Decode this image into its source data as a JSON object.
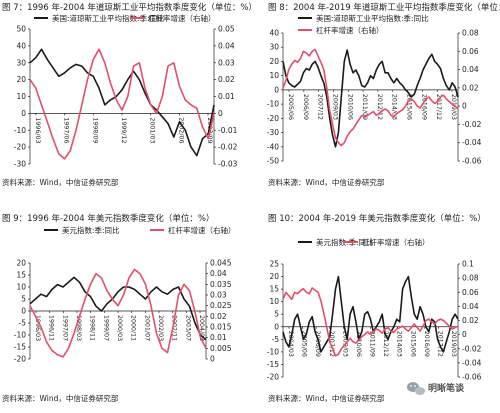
{
  "page": {
    "source": "资料来源：Wind，中信证券研究部"
  },
  "watermark": {
    "text": "明晰笔谈"
  },
  "charts": [
    {
      "title": "图 7：1996 年-2004 年道琼斯工业平均指数季度变化（单位：%）",
      "source": "资料来源：Wind，中信证券研究部",
      "legend": [
        "美国:道琼斯工业平均指数:季:同比",
        "杠杆率增速（右轴）"
      ],
      "y_ticks_left": [
        "50",
        "40",
        "30",
        "20",
        "10",
        "0",
        "-10",
        "-20",
        "-30"
      ],
      "y_ticks_right": [
        "0.05",
        "0.04",
        "0.03",
        "0.02",
        "0.01",
        "0",
        "-0.01",
        "-0.02",
        "-0.03"
      ],
      "x_ticks": [
        "1996/03",
        "1997/06",
        "1998/09",
        "1999/12",
        "2001/03",
        "2002/06",
        "2003/09"
      ]
    },
    {
      "title": "图 8：2004 年-2019 年道琼斯工业平均指数季度变化（单位：%）",
      "source": "资料来源：Wind，中信证券研究部",
      "legend": [
        "美国:道琼斯工业平均指数:季:同比",
        "杠杆率增速（右轴）"
      ],
      "y_ticks_left": [
        "40",
        "30",
        "20",
        "10",
        "0",
        "-10",
        "-20",
        "-30",
        "-40",
        "-50"
      ],
      "y_ticks_right": [
        "0.08",
        "0.06",
        "0.04",
        "0.02",
        "0",
        "-0.02",
        "-0.04",
        "-0.06"
      ],
      "x_ticks": [
        "2005/06",
        "2006/09",
        "2007/12",
        "2009/03",
        "2010/06",
        "2011/09",
        "2012/12",
        "2014/03",
        "2015/06",
        "2016/09",
        "2017/12",
        "2019/03"
      ]
    },
    {
      "title": "图 9：1996 年-2004 年美元指数季度变化（单位：%）",
      "source": "资料来源：Wind，中信证券研究部",
      "legend": [
        "美元指数:季:同比",
        "杠杆率增速（右轴）"
      ],
      "y_ticks_left": [
        "20",
        "15",
        "10",
        "5",
        "0",
        "-5",
        "-10",
        "-15",
        "-20"
      ],
      "y_ticks_right": [
        "0.045",
        "0.04",
        "0.035",
        "0.03",
        "0.025",
        "0.02",
        "0.015",
        "0.01",
        "0.005",
        "0"
      ],
      "x_ticks": [
        "1996/03",
        "1996/11",
        "1997/07",
        "1998/03",
        "1998/11",
        "1999/07",
        "2000/03",
        "2000/11",
        "2001/07",
        "2002/03",
        "2002/11",
        "2003/07",
        "2004/03"
      ]
    },
    {
      "title": "图 10：2004 年-2019 年美元指数季度变化（单位：%）",
      "source": "资料来源：Wind，中信证券研究部",
      "legend": [
        "美元指数:季:同比",
        "杠杆率增速（右轴）"
      ],
      "y_ticks_left": [
        "25",
        "20",
        "15",
        "10",
        "5",
        "0",
        "-5",
        "-10",
        "-15",
        "-20"
      ],
      "y_ticks_right": [
        "0.1",
        "0.08",
        "0.06",
        "0.04",
        "0.02",
        "0",
        "-0.02",
        "-0.04",
        "-0.06"
      ],
      "x_ticks": [
        "2004/03",
        "2005/06",
        "2006/09",
        "2007/12",
        "2009/03",
        "2010/06",
        "2011/09",
        "2012/12",
        "2014/03",
        "2015/06",
        "2016/09",
        "2017/12",
        "2019/03"
      ]
    }
  ],
  "chart_data": [
    {
      "type": "line",
      "title": "图 7：1996 年-2004 年道琼斯工业平均指数季度变化（单位：%）",
      "x_range": [
        "1996Q1",
        "2004Q1"
      ],
      "y_left_range": [
        -30,
        50
      ],
      "y_right_range": [
        -0.03,
        0.05
      ],
      "series": [
        {
          "name": "美国:道琼斯工业平均指数:季:同比",
          "axis": "left",
          "color": "#1a1a1a",
          "values": [
            30,
            33,
            38,
            32,
            27,
            22,
            24,
            27,
            29,
            28,
            24,
            22,
            15,
            5,
            8,
            10,
            14,
            20,
            25,
            20,
            12,
            5,
            2,
            -2,
            -6,
            -14,
            -5,
            -10,
            -20,
            -25,
            -15,
            -12,
            5
          ]
        },
        {
          "name": "杠杆率增速（右轴）",
          "axis": "right",
          "color": "#e0506b",
          "values": [
            0.02,
            0.015,
            0.005,
            -0.005,
            -0.015,
            -0.024,
            -0.027,
            -0.022,
            -0.01,
            0.005,
            0.02,
            0.032,
            0.038,
            0.03,
            0.018,
            0.008,
            0.002,
            0.01,
            0.028,
            0.03,
            0.015,
            0.005,
            0.0,
            0.01,
            0.028,
            0.03,
            0.016,
            0.008,
            0.005,
            0.003,
            -0.008,
            -0.015,
            0.0
          ]
        }
      ]
    },
    {
      "type": "line",
      "title": "图 8：2004 年-2019 年道琼斯工业平均指数季度变化（单位：%）",
      "x_range": [
        "2004Q1",
        "2019Q1"
      ],
      "y_left_range": [
        -50,
        40
      ],
      "y_right_range": [
        -0.06,
        0.08
      ],
      "series": [
        {
          "name": "美国:道琼斯工业平均指数:季:同比",
          "axis": "left",
          "color": "#1a1a1a",
          "values": [
            20,
            10,
            5,
            3,
            2,
            4,
            6,
            12,
            15,
            14,
            18,
            20,
            16,
            10,
            5,
            -5,
            -20,
            -32,
            -40,
            -30,
            -5,
            20,
            28,
            18,
            12,
            14,
            10,
            3,
            2,
            5,
            10,
            8,
            14,
            18,
            20,
            12,
            12,
            8,
            5,
            8,
            5,
            3,
            0,
            -2,
            -5,
            -3,
            3,
            8,
            14,
            18,
            22,
            25,
            20,
            18,
            15,
            8,
            3,
            0,
            5,
            2,
            -5
          ]
        },
        {
          "name": "杠杆率增速（右轴）",
          "axis": "right",
          "color": "#e0506b",
          "values": [
            0.02,
            0.028,
            0.04,
            0.046,
            0.05,
            0.048,
            0.052,
            0.06,
            0.058,
            0.055,
            0.06,
            0.062,
            0.055,
            0.048,
            0.04,
            0.02,
            -0.005,
            -0.02,
            -0.035,
            -0.04,
            -0.043,
            -0.04,
            -0.033,
            -0.028,
            -0.025,
            -0.02,
            -0.015,
            -0.01,
            -0.012,
            -0.01,
            -0.008,
            -0.006,
            -0.01,
            -0.008,
            -0.005,
            -0.003,
            -0.005,
            -0.01,
            -0.012,
            -0.008,
            -0.006,
            -0.004,
            0.0,
            0.006,
            0.008,
            0.005,
            0.0,
            -0.002,
            0.003,
            0.008,
            0.01,
            0.006,
            0.003,
            0.005,
            0.01,
            0.012,
            0.008,
            0.005,
            0.002,
            0.0,
            -0.003
          ]
        }
      ]
    },
    {
      "type": "line",
      "title": "图 9：1996 年-2004 年美元指数季度变化（单位：%）",
      "x_range": [
        "1996Q1",
        "2004Q1"
      ],
      "y_left_range": [
        -20,
        20
      ],
      "y_right_range": [
        0,
        0.045
      ],
      "series": [
        {
          "name": "美元指数:季:同比",
          "axis": "left",
          "color": "#1a1a1a",
          "values": [
            3,
            5,
            7,
            6,
            9,
            11,
            10,
            12,
            14,
            12,
            8,
            6,
            2,
            0,
            3,
            5,
            8,
            10,
            10,
            9,
            7,
            5,
            8,
            10,
            8,
            7,
            9,
            10,
            5,
            2,
            -5,
            -10,
            -12
          ]
        },
        {
          "name": "杠杆率增速（右轴）",
          "axis": "right",
          "color": "#e0506b",
          "values": [
            0.025,
            0.02,
            0.015,
            0.008,
            0.004,
            0.002,
            0.001,
            0.005,
            0.012,
            0.02,
            0.028,
            0.035,
            0.04,
            0.038,
            0.032,
            0.028,
            0.025,
            0.03,
            0.038,
            0.042,
            0.04,
            0.035,
            0.025,
            0.012,
            0.005,
            0.003,
            0.015,
            0.03,
            0.035,
            0.032,
            0.022,
            0.01,
            0.005
          ]
        }
      ]
    },
    {
      "type": "line",
      "title": "图 10：2004 年-2019 年美元指数季度变化（单位：%）",
      "x_range": [
        "2004Q1",
        "2019Q1"
      ],
      "y_left_range": [
        -20,
        25
      ],
      "y_right_range": [
        -0.06,
        0.1
      ],
      "series": [
        {
          "name": "美元指数:季:同比",
          "axis": "left",
          "color": "#1a1a1a",
          "values": [
            -2,
            -6,
            -8,
            -3,
            3,
            5,
            0,
            -5,
            -3,
            2,
            4,
            -2,
            -5,
            -10,
            -8,
            -6,
            -4,
            5,
            15,
            20,
            10,
            0,
            -5,
            5,
            8,
            2,
            -5,
            -2,
            5,
            6,
            3,
            -2,
            0,
            2,
            5,
            -3,
            -5,
            -2,
            0,
            3,
            2,
            15,
            18,
            20,
            12,
            5,
            3,
            8,
            5,
            0,
            -2,
            3,
            2,
            -5,
            -8,
            -10,
            -6,
            -2,
            3,
            5,
            3
          ]
        },
        {
          "name": "杠杆率增速（右轴）",
          "axis": "right",
          "color": "#e0506b",
          "values": [
            0.05,
            0.06,
            0.055,
            0.05,
            0.06,
            0.058,
            0.062,
            0.065,
            0.06,
            0.058,
            0.066,
            0.063,
            0.06,
            0.048,
            0.03,
            0.01,
            -0.01,
            -0.02,
            -0.03,
            -0.028,
            -0.02,
            -0.015,
            -0.01,
            -0.005,
            -0.01,
            -0.012,
            -0.008,
            -0.003,
            0.0,
            0.004,
            0.0,
            0.004,
            0.008,
            0.006,
            0.002,
            0.008,
            0.01,
            0.005,
            0.003,
            0.008,
            0.01,
            0.012,
            0.008,
            0.005,
            0.01,
            0.015,
            0.01,
            0.005,
            0.012,
            0.02,
            0.022,
            0.018,
            0.015,
            0.02,
            0.022,
            0.02,
            0.016,
            0.012,
            0.008,
            0.01,
            0.012
          ]
        }
      ]
    }
  ]
}
